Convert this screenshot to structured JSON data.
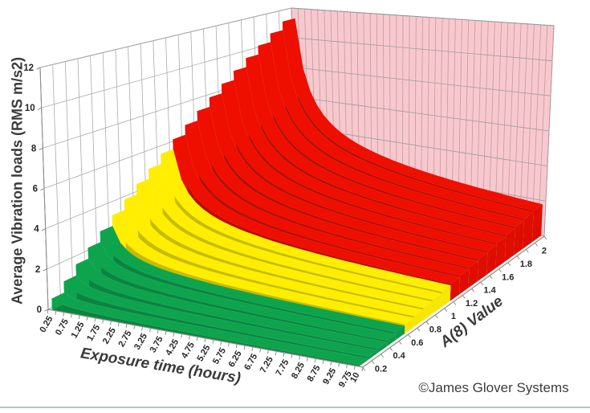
{
  "chart_data": {
    "type": "area",
    "projection": "3d",
    "value_formula": "vibration_load = A8 * sqrt(8 / exposure_time)",
    "x_axis": {
      "title": "Exposure time (hours)",
      "categories": [
        0.25,
        0.5,
        0.75,
        1,
        1.25,
        1.5,
        1.75,
        2,
        2.25,
        2.5,
        2.75,
        3,
        3.25,
        3.5,
        3.75,
        4,
        4.25,
        4.5,
        4.75,
        5,
        5.25,
        5.5,
        5.75,
        6,
        6.25,
        6.5,
        6.75,
        7,
        7.25,
        7.5,
        7.75,
        8,
        8.25,
        8.5,
        8.75,
        9,
        9.25,
        9.5,
        9.75,
        10
      ],
      "tick_labels": [
        {
          "label": "0.25",
          "t": 0.25
        },
        {
          "label": "0.75",
          "t": 0.75
        },
        {
          "label": "1.25",
          "t": 1.25
        },
        {
          "label": "1.75",
          "t": 1.75
        },
        {
          "label": "2.25",
          "t": 2.25
        },
        {
          "label": "2.75",
          "t": 2.75
        },
        {
          "label": "3.25",
          "t": 3.25
        },
        {
          "label": "3.75",
          "t": 3.75
        },
        {
          "label": "4.25",
          "t": 4.25
        },
        {
          "label": "4.75",
          "t": 4.75
        },
        {
          "label": "5.25",
          "t": 5.25
        },
        {
          "label": "5.75",
          "t": 5.75
        },
        {
          "label": "6.25",
          "t": 6.25
        },
        {
          "label": "6.75",
          "t": 6.75
        },
        {
          "label": "7.25",
          "t": 7.25
        },
        {
          "label": "7.75",
          "t": 7.75
        },
        {
          "label": "8.25",
          "t": 8.25
        },
        {
          "label": "8.75",
          "t": 8.75
        },
        {
          "label": "9.25",
          "t": 9.25
        },
        {
          "label": "9.75",
          "t": 9.75
        },
        {
          "label": "10",
          "t": 10
        }
      ]
    },
    "y_axis": {
      "title": "Average Vibration loads (RMS m/s2)",
      "ticks": [
        0,
        2,
        4,
        6,
        8,
        10,
        12
      ],
      "max": 12
    },
    "depth_axis": {
      "title": "A(8) Value",
      "series_values": [
        0.1,
        0.2,
        0.3,
        0.4,
        0.5,
        0.6,
        0.7,
        0.8,
        0.9,
        1,
        1.1,
        1.2,
        1.3,
        1.4,
        1.5,
        1.6,
        1.7,
        1.8,
        1.9,
        2
      ],
      "tick_labels": [
        "0.2",
        "0.4",
        "0.6",
        "0.8",
        "1",
        "1.2",
        "1.4",
        "1.6",
        "1.8",
        "2"
      ]
    },
    "color_zones": [
      {
        "max_a8": 0.5,
        "zone": "green"
      },
      {
        "max_a8": 1.0,
        "zone": "yellow"
      },
      {
        "max_a8": 2.0,
        "zone": "red"
      }
    ],
    "colors": {
      "green": {
        "top": "#0ea44e",
        "side": "#0b8440",
        "end": "#0c9a49",
        "back": "#c9ead3"
      },
      "yellow": {
        "top": "#ffee00",
        "side": "#c8bb00",
        "end": "#f7e600",
        "back": "#f7f3c4"
      },
      "red": {
        "top": "#ee0f00",
        "side": "#bb0c00",
        "end": "#de0d00",
        "back": "#f6c7cb"
      },
      "wall_side": "#ffffff",
      "wall_back": "#f7c9ce",
      "wall_side_grid": "#ababab",
      "wall_back_grid_v": "#c49a9f",
      "wall_back_grid_h": "#9b9b9b",
      "wall_edge": "#8c8c8c",
      "axis_line": "#8c8c8c",
      "tick_label": "#262626",
      "bottom_rule": "#b6c3d9"
    }
  },
  "annotation": {
    "copyright": "©James Glover Systems"
  }
}
